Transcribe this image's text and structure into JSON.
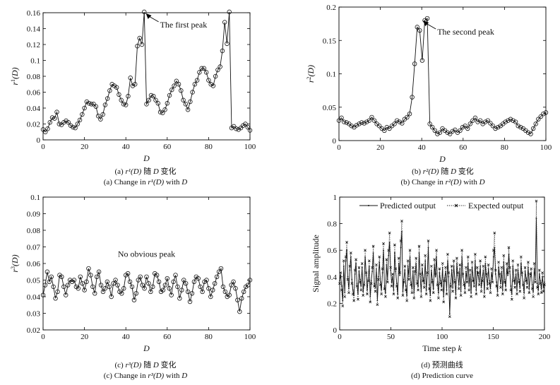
{
  "panels": [
    {
      "id": "a",
      "type": "scatter",
      "ylabel": "r¹(D)",
      "ylabel_base": "r",
      "ylabel_sup": "1",
      "ylabel_tail": "(D)",
      "xlabel": "D",
      "xlim": [
        0,
        100
      ],
      "ylim": [
        0,
        0.16
      ],
      "xticks": [
        "0",
        "20",
        "40",
        "60",
        "80",
        "100"
      ],
      "yticks": [
        "0",
        "0.02",
        "0.04",
        "0.06",
        "0.08",
        "0.1",
        "0.12",
        "0.14",
        "0.16"
      ],
      "annotation": {
        "text": "The first peak",
        "x": 49,
        "y": 0.161
      },
      "series": [
        {
          "marker": "circle",
          "values": [
            0.013,
            0.01,
            0.014,
            0.022,
            0.028,
            0.027,
            0.035,
            0.02,
            0.019,
            0.022,
            0.024,
            0.022,
            0.018,
            0.016,
            0.015,
            0.02,
            0.025,
            0.032,
            0.04,
            0.048,
            0.046,
            0.045,
            0.045,
            0.042,
            0.03,
            0.026,
            0.032,
            0.044,
            0.052,
            0.062,
            0.07,
            0.068,
            0.066,
            0.057,
            0.05,
            0.045,
            0.044,
            0.055,
            0.078,
            0.068,
            0.07,
            0.118,
            0.128,
            0.12,
            0.161,
            0.045,
            0.05,
            0.056,
            0.055,
            0.05,
            0.046,
            0.035,
            0.034,
            0.038,
            0.046,
            0.056,
            0.063,
            0.068,
            0.074,
            0.07,
            0.062,
            0.05,
            0.045,
            0.038,
            0.048,
            0.06,
            0.07,
            0.075,
            0.085,
            0.09,
            0.09,
            0.085,
            0.075,
            0.07,
            0.068,
            0.08,
            0.088,
            0.092,
            0.112,
            0.148,
            0.121,
            0.161,
            0.015,
            0.017,
            0.014,
            0.013,
            0.015,
            0.018,
            0.02,
            0.016,
            0.012
          ]
        }
      ]
    },
    {
      "id": "b",
      "type": "scatter",
      "ylabel": "r²(D)",
      "ylabel_base": "r",
      "ylabel_sup": "2",
      "ylabel_tail": "(D)",
      "xlabel": "D",
      "xlim": [
        0,
        100
      ],
      "ylim": [
        0,
        0.2
      ],
      "xticks": [
        "0",
        "20",
        "40",
        "60",
        "80",
        "100"
      ],
      "yticks": [
        "0",
        "0.05",
        "0.1",
        "0.15",
        "0.2"
      ],
      "annotation": {
        "text": "The second peak",
        "x": 40,
        "y": 0.182
      },
      "series": [
        {
          "marker": "circle",
          "values": [
            0.03,
            0.034,
            0.028,
            0.027,
            0.025,
            0.022,
            0.02,
            0.023,
            0.025,
            0.027,
            0.026,
            0.028,
            0.03,
            0.035,
            0.03,
            0.025,
            0.022,
            0.018,
            0.015,
            0.02,
            0.018,
            0.022,
            0.025,
            0.03,
            0.028,
            0.026,
            0.032,
            0.035,
            0.04,
            0.065,
            0.115,
            0.17,
            0.165,
            0.12,
            0.18,
            0.183,
            0.025,
            0.02,
            0.015,
            0.01,
            0.012,
            0.018,
            0.015,
            0.012,
            0.01,
            0.014,
            0.016,
            0.012,
            0.015,
            0.02,
            0.022,
            0.018,
            0.025,
            0.03,
            0.034,
            0.028,
            0.03,
            0.025,
            0.028,
            0.03,
            0.026,
            0.022,
            0.018,
            0.02,
            0.022,
            0.025,
            0.028,
            0.03,
            0.032,
            0.03,
            0.028,
            0.022,
            0.02,
            0.018,
            0.015,
            0.012,
            0.01,
            0.018,
            0.025,
            0.032,
            0.036,
            0.04,
            0.042
          ]
        }
      ]
    },
    {
      "id": "c",
      "type": "scatter",
      "ylabel": "r³(D)",
      "ylabel_base": "r",
      "ylabel_sup": "3",
      "ylabel_tail": "(D)",
      "xlabel": "D",
      "xlim": [
        0,
        100
      ],
      "ylim": [
        0.02,
        0.1
      ],
      "xticks": [
        "0",
        "20",
        "40",
        "60",
        "80",
        "100"
      ],
      "yticks": [
        "0.02",
        "0.03",
        "0.04",
        "0.05",
        "0.06",
        "0.07",
        "0.08",
        "0.09",
        "0.1"
      ],
      "annotation": {
        "text": "No obvious peak",
        "x": 50,
        "y": 0.064
      },
      "series": [
        {
          "marker": "circle",
          "values": [
            0.041,
            0.047,
            0.055,
            0.049,
            0.052,
            0.046,
            0.039,
            0.043,
            0.053,
            0.052,
            0.046,
            0.041,
            0.047,
            0.05,
            0.049,
            0.05,
            0.046,
            0.045,
            0.052,
            0.048,
            0.044,
            0.049,
            0.057,
            0.053,
            0.046,
            0.042,
            0.052,
            0.055,
            0.047,
            0.043,
            0.045,
            0.049,
            0.046,
            0.04,
            0.048,
            0.05,
            0.047,
            0.043,
            0.042,
            0.045,
            0.053,
            0.054,
            0.049,
            0.046,
            0.038,
            0.042,
            0.05,
            0.052,
            0.047,
            0.045,
            0.052,
            0.048,
            0.043,
            0.046,
            0.054,
            0.053,
            0.049,
            0.043,
            0.044,
            0.047,
            0.051,
            0.045,
            0.041,
            0.049,
            0.053,
            0.046,
            0.039,
            0.044,
            0.05,
            0.048,
            0.043,
            0.037,
            0.042,
            0.049,
            0.052,
            0.051,
            0.046,
            0.043,
            0.049,
            0.05,
            0.045,
            0.04,
            0.044,
            0.048,
            0.052,
            0.055,
            0.057,
            0.046,
            0.043,
            0.04,
            0.041,
            0.047,
            0.049,
            0.045,
            0.038,
            0.031,
            0.039,
            0.043,
            0.046,
            0.047,
            0.05
          ]
        }
      ]
    },
    {
      "id": "d",
      "type": "line",
      "ylabel": "Signal amplitude",
      "xlabel": "Time step k",
      "xlabel_main": "Time step ",
      "xlabel_var": "k",
      "xlim": [
        0,
        200
      ],
      "ylim": [
        0,
        1
      ],
      "xticks": [
        "0",
        "50",
        "100",
        "150",
        "200"
      ],
      "yticks": [
        "0",
        "0.2",
        "0.4",
        "0.6",
        "0.8",
        "1"
      ],
      "legend": {
        "placement": "top"
      },
      "series": [
        {
          "name": "Predicted output",
          "style": "solid-dot",
          "values": [
            0.37,
            0.41,
            0.33,
            0.22,
            0.48,
            0.28,
            0.52,
            0.6,
            0.4,
            0.31,
            0.45,
            0.55,
            0.38,
            0.3,
            0.26,
            0.42,
            0.5,
            0.35,
            0.27,
            0.44,
            0.38,
            0.33,
            0.47,
            0.29,
            0.36,
            0.55,
            0.41,
            0.3,
            0.39,
            0.48,
            0.25,
            0.37,
            0.44,
            0.58,
            0.35,
            0.32,
            0.46,
            0.22,
            0.4,
            0.51,
            0.36,
            0.3,
            0.43,
            0.6,
            0.33,
            0.28,
            0.49,
            0.38,
            0.56,
            0.66,
            0.45,
            0.36,
            0.4,
            0.3,
            0.58,
            0.44,
            0.35,
            0.27,
            0.5,
            0.41,
            0.62,
            0.74,
            0.29,
            0.38,
            0.45,
            0.33,
            0.26,
            0.48,
            0.4,
            0.55,
            0.36,
            0.31,
            0.44,
            0.28,
            0.42,
            0.5,
            0.37,
            0.33,
            0.58,
            0.4,
            0.29,
            0.46,
            0.39,
            0.35,
            0.52,
            0.3,
            0.41,
            0.62,
            0.34,
            0.26,
            0.45,
            0.38,
            0.31,
            0.49,
            0.4,
            0.55,
            0.36,
            0.28,
            0.43,
            0.37,
            0.33,
            0.47,
            0.25,
            0.39,
            0.44,
            0.3,
            0.52,
            0.4,
            0.12,
            0.35,
            0.45,
            0.32,
            0.48,
            0.38,
            0.27,
            0.5,
            0.41,
            0.34,
            0.46,
            0.29,
            0.55,
            0.4,
            0.36,
            0.31,
            0.44,
            0.38,
            0.5,
            0.33,
            0.42,
            0.28,
            0.47,
            0.39,
            0.35,
            0.52,
            0.3,
            0.44,
            0.41,
            0.36,
            0.48,
            0.32,
            0.39,
            0.45,
            0.28,
            0.5,
            0.4,
            0.34,
            0.46,
            0.37,
            0.31,
            0.43,
            0.38,
            0.55,
            0.62,
            0.42,
            0.36,
            0.29,
            0.47,
            0.4,
            0.35,
            0.44,
            0.3,
            0.51,
            0.38,
            0.33,
            0.46,
            0.41,
            0.57,
            0.44,
            0.33,
            0.27,
            0.48,
            0.39,
            0.35,
            0.42,
            0.3,
            0.45,
            0.38,
            0.32,
            0.5,
            0.41,
            0.36,
            0.28,
            0.44,
            0.39,
            0.35,
            0.47,
            0.31,
            0.4,
            0.43,
            0.34,
            0.29,
            0.46,
            0.38,
            0.84,
            0.35,
            0.3,
            0.42,
            0.37,
            0.31,
            0.4,
            0.32,
            0.36
          ]
        },
        {
          "name": "Expected output",
          "style": "dotted-x",
          "values": [
            0.35,
            0.43,
            0.3,
            0.18,
            0.52,
            0.25,
            0.55,
            0.66,
            0.38,
            0.28,
            0.48,
            0.58,
            0.35,
            0.27,
            0.22,
            0.45,
            0.53,
            0.33,
            0.23,
            0.47,
            0.36,
            0.3,
            0.5,
            0.26,
            0.34,
            0.6,
            0.43,
            0.27,
            0.37,
            0.52,
            0.21,
            0.35,
            0.47,
            0.63,
            0.33,
            0.29,
            0.49,
            0.19,
            0.38,
            0.55,
            0.34,
            0.27,
            0.46,
            0.65,
            0.31,
            0.25,
            0.53,
            0.36,
            0.6,
            0.73,
            0.47,
            0.33,
            0.42,
            0.27,
            0.64,
            0.46,
            0.33,
            0.24,
            0.54,
            0.43,
            0.67,
            0.82,
            0.26,
            0.36,
            0.48,
            0.3,
            0.22,
            0.52,
            0.38,
            0.6,
            0.34,
            0.28,
            0.47,
            0.24,
            0.44,
            0.54,
            0.35,
            0.3,
            0.63,
            0.42,
            0.25,
            0.49,
            0.37,
            0.32,
            0.56,
            0.27,
            0.43,
            0.67,
            0.31,
            0.22,
            0.48,
            0.36,
            0.28,
            0.53,
            0.42,
            0.6,
            0.34,
            0.24,
            0.46,
            0.35,
            0.3,
            0.5,
            0.21,
            0.37,
            0.47,
            0.27,
            0.57,
            0.43,
            0.1,
            0.33,
            0.48,
            0.29,
            0.52,
            0.36,
            0.24,
            0.54,
            0.43,
            0.31,
            0.49,
            0.26,
            0.6,
            0.42,
            0.34,
            0.28,
            0.47,
            0.36,
            0.55,
            0.3,
            0.45,
            0.25,
            0.51,
            0.37,
            0.33,
            0.57,
            0.27,
            0.47,
            0.43,
            0.34,
            0.52,
            0.29,
            0.37,
            0.48,
            0.25,
            0.55,
            0.42,
            0.31,
            0.49,
            0.35,
            0.28,
            0.46,
            0.36,
            0.6,
            0.73,
            0.45,
            0.33,
            0.26,
            0.51,
            0.42,
            0.32,
            0.47,
            0.27,
            0.56,
            0.36,
            0.3,
            0.5,
            0.43,
            0.62,
            0.47,
            0.3,
            0.23,
            0.52,
            0.37,
            0.32,
            0.45,
            0.27,
            0.49,
            0.36,
            0.29,
            0.55,
            0.43,
            0.34,
            0.24,
            0.47,
            0.37,
            0.32,
            0.51,
            0.28,
            0.42,
            0.46,
            0.31,
            0.25,
            0.5,
            0.36,
            0.97,
            0.32,
            0.27,
            0.45,
            0.35,
            0.28,
            0.43,
            0.29,
            0.34
          ]
        }
      ]
    }
  ],
  "captions": {
    "a": {
      "zh_pre": "(a) ",
      "zh_var": "r¹(D)",
      "zh_mid": " 随 ",
      "zh_var2": "D",
      "zh_post": " 变化",
      "en_pre": "(a) Change in ",
      "en_var": "r¹(D)",
      "en_mid": " with ",
      "en_var2": "D"
    },
    "b": {
      "zh_pre": "(b) ",
      "zh_var": "r²(D)",
      "zh_mid": " 随 ",
      "zh_var2": "D",
      "zh_post": " 变化",
      "en_pre": "(b) Change in ",
      "en_var": "r²(D)",
      "en_mid": " with ",
      "en_var2": "D"
    },
    "c": {
      "zh_pre": "(c) ",
      "zh_var": "r³(D)",
      "zh_mid": " 随 ",
      "zh_var2": "D",
      "zh_post": " 变化",
      "en_pre": "(c) Change in ",
      "en_var": "r³(D)",
      "en_mid": " with ",
      "en_var2": "D"
    },
    "d": {
      "zh": "(d) 预测曲线",
      "en": "(d) Prediction curve"
    }
  }
}
